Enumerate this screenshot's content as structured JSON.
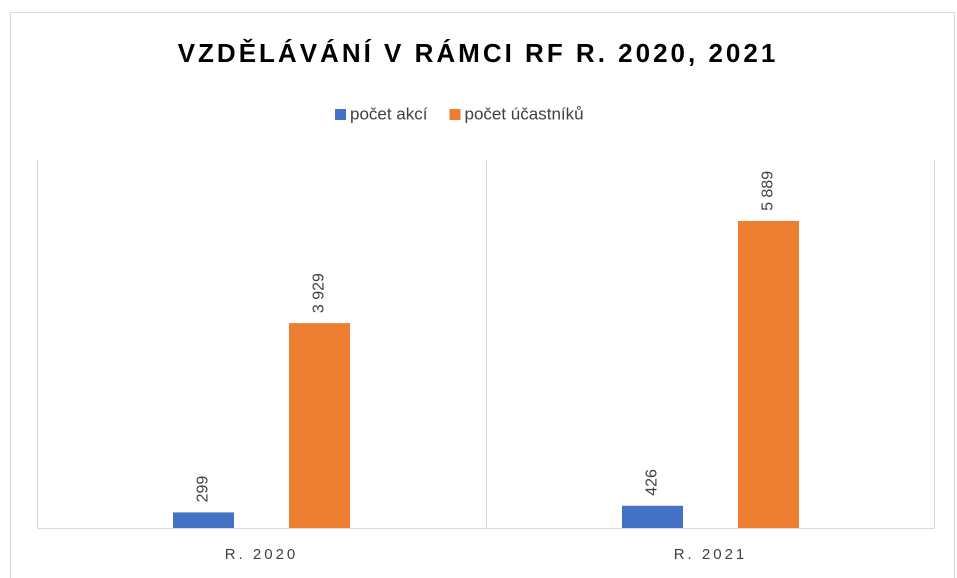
{
  "chart_data": {
    "type": "bar",
    "title": "VZDĚLÁVÁNÍ V RÁMCI RF R. 2020, 2021",
    "categories": [
      "R. 2020",
      "R. 2021"
    ],
    "series": [
      {
        "name": "počet akcí",
        "color": "#4472c4",
        "values": [
          299,
          426
        ],
        "value_labels": [
          "299",
          "426"
        ]
      },
      {
        "name": "počet účastníků",
        "color": "#ed7d31",
        "values": [
          3929,
          5889
        ],
        "value_labels": [
          "3 929",
          "5 889"
        ]
      }
    ],
    "ylim": [
      0,
      7000
    ],
    "legend": "top"
  }
}
